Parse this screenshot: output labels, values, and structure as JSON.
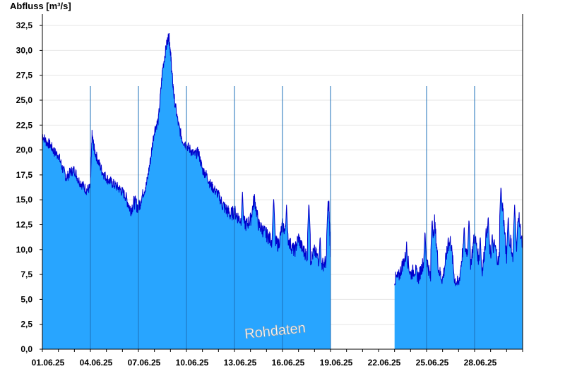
{
  "chart_data": {
    "type": "area",
    "ylabel": "Abfluss [m³/s]",
    "watermark": "Rohdaten",
    "ylim": [
      0,
      33.5
    ],
    "xlim_days": [
      0,
      30
    ],
    "yticks": [
      "0,0",
      "2,5",
      "5,0",
      "7,5",
      "10,0",
      "12,5",
      "15,0",
      "17,5",
      "20,0",
      "22,5",
      "25,0",
      "27,5",
      "30,0",
      "32,5"
    ],
    "ytick_values": [
      0,
      2.5,
      5,
      7.5,
      10,
      12.5,
      15,
      17.5,
      20,
      22.5,
      25,
      27.5,
      30,
      32.5
    ],
    "xticks": [
      "01.06.25",
      "04.06.25",
      "07.06.25",
      "10.06.25",
      "13.06.25",
      "16.06.25",
      "19.06.25",
      "22.06.25",
      "25.06.25",
      "28.06.25"
    ],
    "xtick_days": [
      0,
      3,
      6,
      9,
      12,
      15,
      18,
      21,
      24,
      27
    ],
    "grid": true,
    "fill_color": "#28a5ff",
    "line_color": "#0000cc",
    "series": [
      {
        "x": [
          0,
          0.25,
          0.5,
          0.75,
          1,
          1.25,
          1.5,
          1.75,
          2,
          2.25,
          2.5,
          2.75,
          3,
          3.1,
          3.25,
          3.5,
          3.75,
          4,
          4.25,
          4.5,
          4.75,
          5,
          5.25,
          5.5,
          5.75,
          6,
          6.25,
          6.5,
          6.75,
          7,
          7.25,
          7.5,
          7.75,
          7.9,
          8,
          8.1,
          8.25,
          8.5,
          8.75,
          9,
          9.25,
          9.5,
          9.75,
          10,
          10.25,
          10.5,
          10.75,
          11,
          11.25,
          11.5,
          11.75,
          12,
          12.25,
          12.5,
          12.75,
          13,
          13.25,
          13.5,
          13.75,
          14,
          14.25,
          14.5,
          14.75,
          15,
          15.25,
          15.5,
          15.75,
          16,
          16.25,
          16.5,
          16.75,
          17,
          17.25,
          17.5,
          17.75,
          17.9,
          18
        ],
        "y": [
          21.5,
          20.8,
          20.5,
          19.8,
          19.5,
          18.2,
          17.2,
          17.8,
          18.0,
          17.0,
          16.5,
          16.0,
          16.2,
          21.5,
          20.0,
          18.8,
          17.8,
          17.2,
          16.8,
          16.5,
          16.2,
          15.8,
          15.2,
          14.0,
          14.8,
          14.2,
          15.5,
          16.5,
          19.0,
          22.0,
          23.0,
          28.0,
          30.5,
          31.5,
          30.0,
          27.5,
          25.0,
          22.5,
          21.0,
          20.5,
          20.0,
          19.5,
          19.8,
          18.0,
          17.5,
          16.5,
          16.0,
          15.5,
          14.5,
          14.0,
          13.5,
          13.8,
          13.2,
          12.8,
          12.5,
          13.0,
          15.2,
          12.5,
          12.0,
          11.5,
          11.0,
          10.8,
          10.5,
          12.5,
          11.5,
          10.5,
          9.8,
          11.2,
          10.0,
          9.5,
          9.0,
          9.8,
          9.0,
          8.5,
          8.8,
          14.5,
          9.2
        ],
        "highlights": [
          [
            12.5,
            15.8
          ],
          [
            14.45,
            15.2
          ],
          [
            15.25,
            14.5
          ],
          [
            16.65,
            14.8
          ],
          [
            17.35,
            11.5
          ],
          [
            17.85,
            15.0
          ],
          [
            10.75,
            13.5
          ],
          [
            13.35,
            14.0
          ]
        ]
      },
      {
        "x": [
          22,
          22.25,
          22.5,
          22.75,
          23,
          23.25,
          23.5,
          23.75,
          24,
          24.25,
          24.5,
          24.75,
          25,
          25.25,
          25.5,
          25.75,
          26,
          26.25,
          26.5,
          26.75,
          27,
          27.25,
          27.5,
          27.75,
          28,
          28.25,
          28.5,
          28.75,
          29,
          29.25,
          29.5,
          29.75,
          30
        ],
        "y": [
          7.0,
          7.2,
          8.5,
          9.5,
          7.5,
          8.0,
          7.2,
          8.5,
          9.2,
          7.0,
          12.8,
          8.0,
          7.0,
          9.5,
          11.0,
          7.0,
          6.5,
          9.8,
          10.0,
          8.5,
          11.5,
          9.0,
          8.0,
          12.0,
          9.5,
          10.5,
          8.5,
          14.5,
          9.0,
          11.0,
          7.5,
          13.5,
          10.0
        ],
        "highlights": [
          [
            22.75,
            10.8
          ],
          [
            23.9,
            12.0
          ],
          [
            24.35,
            13.2
          ],
          [
            25.35,
            11.5
          ],
          [
            26.35,
            12.5
          ],
          [
            26.65,
            13.2
          ],
          [
            27.35,
            11.5
          ],
          [
            27.85,
            13.5
          ],
          [
            28.1,
            11.8
          ],
          [
            28.65,
            16.5
          ],
          [
            29.1,
            13.5
          ],
          [
            29.5,
            14.5
          ],
          [
            29.95,
            10.5
          ]
        ]
      }
    ]
  }
}
